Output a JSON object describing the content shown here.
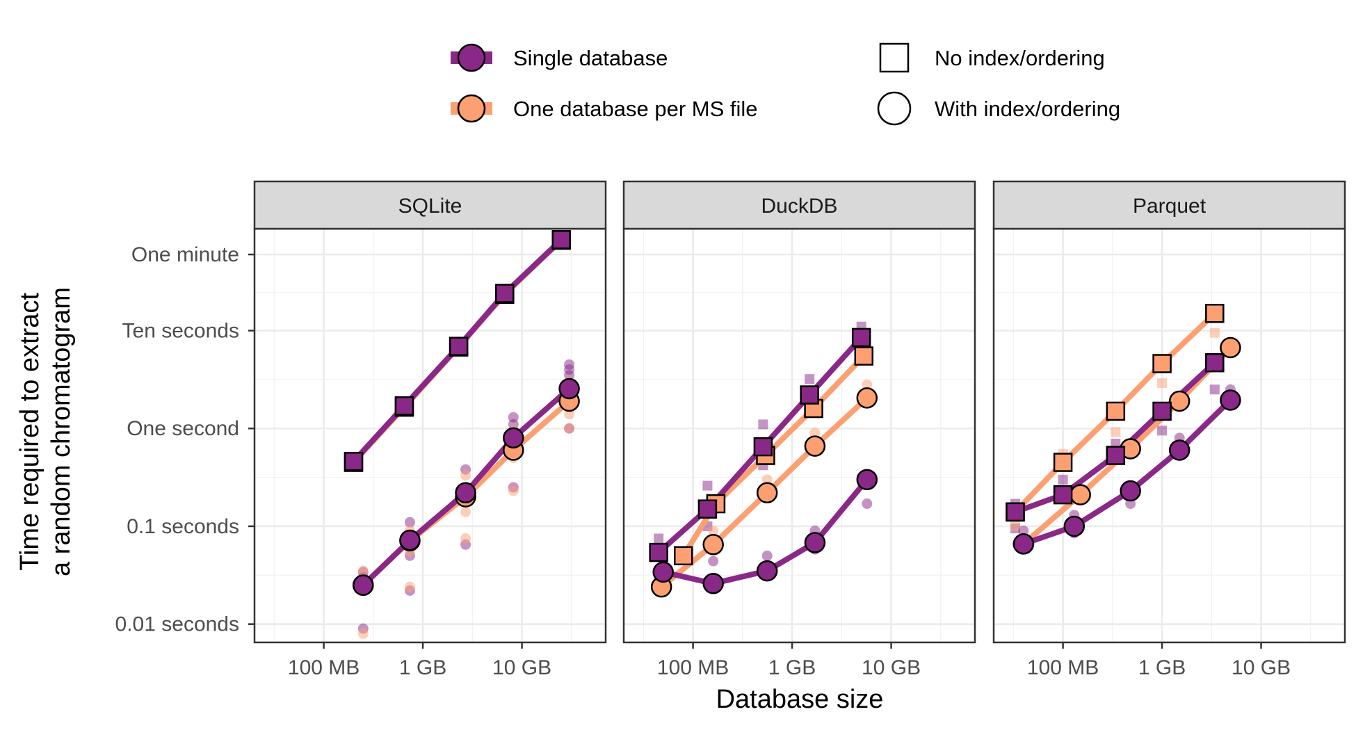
{
  "chart_data": {
    "type": "scatter",
    "xlabel": "Database size",
    "ylabel": [
      "Time required to extract",
      "a random chromatogram"
    ],
    "x_scale": "log",
    "y_scale": "log",
    "xlim_bytes": [
      20000000,
      70000000000
    ],
    "ylim_seconds": [
      0.0065,
      110
    ],
    "x_ticks": [
      {
        "value": 100000000,
        "label": "100 MB"
      },
      {
        "value": 1000000000,
        "label": "1 GB"
      },
      {
        "value": 10000000000,
        "label": "10 GB"
      }
    ],
    "y_ticks": [
      {
        "value": 0.01,
        "label": "0.01 seconds"
      },
      {
        "value": 0.1,
        "label": "0.1 seconds"
      },
      {
        "value": 1,
        "label": "One second"
      },
      {
        "value": 10,
        "label": "Ten seconds"
      },
      {
        "value": 60,
        "label": "One minute"
      }
    ],
    "grid": true,
    "legend": {
      "placement": "top",
      "series": [
        {
          "key": "single",
          "label": "Single database",
          "color": "#8A2887"
        },
        {
          "key": "perfile",
          "label": "One database per MS file",
          "color": "#FCA072"
        }
      ],
      "shapes": [
        {
          "key": "noindex",
          "label": "No index/ordering",
          "shape": "square"
        },
        {
          "key": "indexed",
          "label": "With index/ordering",
          "shape": "circle"
        }
      ]
    },
    "colors": {
      "single": "#8A2887",
      "perfile": "#FCA072",
      "strip_bg": "#D9D9D9",
      "grid": "#EBEBEB"
    },
    "panels": [
      {
        "title": "SQLite",
        "series": [
          {
            "db": "single",
            "index": "noindex",
            "x": [
              200000000,
              650000000,
              2300000000,
              6700000000,
              25000000000
            ],
            "y": [
              0.46,
              1.7,
              6.9,
              24,
              85
            ]
          },
          {
            "db": "perfile",
            "index": "noindex",
            "x": [
              200000000,
              650000000,
              2300000000,
              6700000000,
              25000000000
            ],
            "y": [
              0.45,
              1.65,
              6.8,
              23.5,
              84
            ]
          },
          {
            "db": "single",
            "index": "indexed",
            "x": [
              250000000,
              740000000,
              2700000000,
              8200000000,
              30000000000
            ],
            "y": [
              0.025,
              0.072,
              0.22,
              0.8,
              2.55
            ]
          },
          {
            "db": "perfile",
            "index": "indexed",
            "x": [
              250000000,
              740000000,
              2700000000,
              8200000000,
              30000000000
            ],
            "y": [
              0.025,
              0.071,
              0.2,
              0.6,
              1.9
            ]
          }
        ],
        "replicates": [
          {
            "db": "single",
            "index": "indexed",
            "x": [
              250000000,
              250000000,
              250000000,
              740000000,
              740000000,
              740000000,
              2700000000,
              2700000000,
              2700000000,
              8200000000,
              8200000000,
              8200000000,
              8200000000,
              30000000000,
              30000000000,
              30000000000,
              30000000000
            ],
            "y": [
              0.009,
              0.034,
              0.03,
              0.022,
              0.11,
              0.05,
              0.065,
              0.38,
              0.25,
              0.25,
              1.3,
              1.1,
              0.7,
              4.5,
              4,
              3.5,
              1
            ]
          },
          {
            "db": "perfile",
            "index": "indexed",
            "x": [
              250000000,
              250000000,
              250000000,
              740000000,
              740000000,
              740000000,
              2700000000,
              2700000000,
              2700000000,
              8200000000,
              8200000000,
              8200000000,
              30000000000,
              30000000000,
              30000000000
            ],
            "y": [
              0.008,
              0.035,
              0.028,
              0.024,
              0.09,
              0.055,
              0.075,
              0.33,
              0.14,
              0.23,
              0.95,
              0.5,
              1.4,
              3,
              1
            ]
          }
        ]
      },
      {
        "title": "DuckDB",
        "series": [
          {
            "db": "single",
            "index": "noindex",
            "x": [
              45000000,
              140000000,
              510000000,
              1500000000,
              5000000000
            ],
            "y": [
              0.054,
              0.15,
              0.65,
              2.2,
              8.5
            ]
          },
          {
            "db": "perfile",
            "index": "noindex",
            "x": [
              80000000,
              170000000,
              540000000,
              1650000000,
              5300000000
            ],
            "y": [
              0.05,
              0.17,
              0.53,
              1.6,
              5.5
            ]
          },
          {
            "db": "single",
            "index": "indexed",
            "x": [
              50000000,
              160000000,
              560000000,
              1700000000,
              5700000000
            ],
            "y": [
              0.034,
              0.026,
              0.035,
              0.068,
              0.3
            ]
          },
          {
            "db": "perfile",
            "index": "indexed",
            "x": [
              48000000,
              160000000,
              560000000,
              1700000000,
              5700000000
            ],
            "y": [
              0.024,
              0.065,
              0.22,
              0.66,
              2.05
            ]
          }
        ],
        "replicates": [
          {
            "db": "single",
            "index": "noindex",
            "x": [
              45000000,
              140000000,
              140000000,
              510000000,
              510000000,
              1500000000,
              1500000000,
              5000000000,
              5000000000
            ],
            "y": [
              0.075,
              0.26,
              0.1,
              1.1,
              0.42,
              3.2,
              1.6,
              11,
              6
            ]
          },
          {
            "db": "single",
            "index": "indexed",
            "x": [
              160000000,
              160000000,
              560000000,
              1700000000,
              1700000000,
              5700000000
            ],
            "y": [
              0.044,
              0.023,
              0.05,
              0.09,
              0.058,
              0.17
            ]
          },
          {
            "db": "perfile",
            "index": "indexed",
            "x": [
              160000000,
              560000000,
              1700000000,
              5700000000
            ],
            "y": [
              0.09,
              0.3,
              0.9,
              2.8
            ]
          }
        ]
      },
      {
        "title": "Parquet",
        "series": [
          {
            "db": "single",
            "index": "noindex",
            "x": [
              33000000,
              100000000,
              340000000,
              1000000000,
              3400000000
            ],
            "y": [
              0.14,
              0.21,
              0.53,
              1.5,
              4.7
            ]
          },
          {
            "db": "perfile",
            "index": "noindex",
            "x": [
              33000000,
              100000000,
              340000000,
              1000000000,
              3400000000
            ],
            "y": [
              0.14,
              0.45,
              1.5,
              4.6,
              15
            ]
          },
          {
            "db": "single",
            "index": "indexed",
            "x": [
              40000000,
              130000000,
              480000000,
              1500000000,
              4900000000
            ],
            "y": [
              0.066,
              0.1,
              0.23,
              0.6,
              1.95
            ]
          },
          {
            "db": "perfile",
            "index": "indexed",
            "x": [
              40000000,
              150000000,
              480000000,
              1500000000,
              4900000000
            ],
            "y": [
              0.066,
              0.21,
              0.62,
              1.9,
              6.7
            ]
          }
        ],
        "replicates": [
          {
            "db": "single",
            "index": "noindex",
            "x": [
              33000000,
              33000000,
              100000000,
              340000000,
              1000000000,
              3400000000
            ],
            "y": [
              0.17,
              0.095,
              0.3,
              0.7,
              0.95,
              2.5
            ]
          },
          {
            "db": "perfile",
            "index": "noindex",
            "x": [
              33000000,
              100000000,
              340000000,
              1000000000,
              3400000000
            ],
            "y": [
              0.1,
              0.55,
              0.92,
              2.9,
              9.5
            ]
          },
          {
            "db": "single",
            "index": "indexed",
            "x": [
              40000000,
              130000000,
              130000000,
              480000000,
              1500000000,
              4900000000
            ],
            "y": [
              0.09,
              0.13,
              0.085,
              0.17,
              0.8,
              2.5
            ]
          }
        ]
      }
    ]
  }
}
